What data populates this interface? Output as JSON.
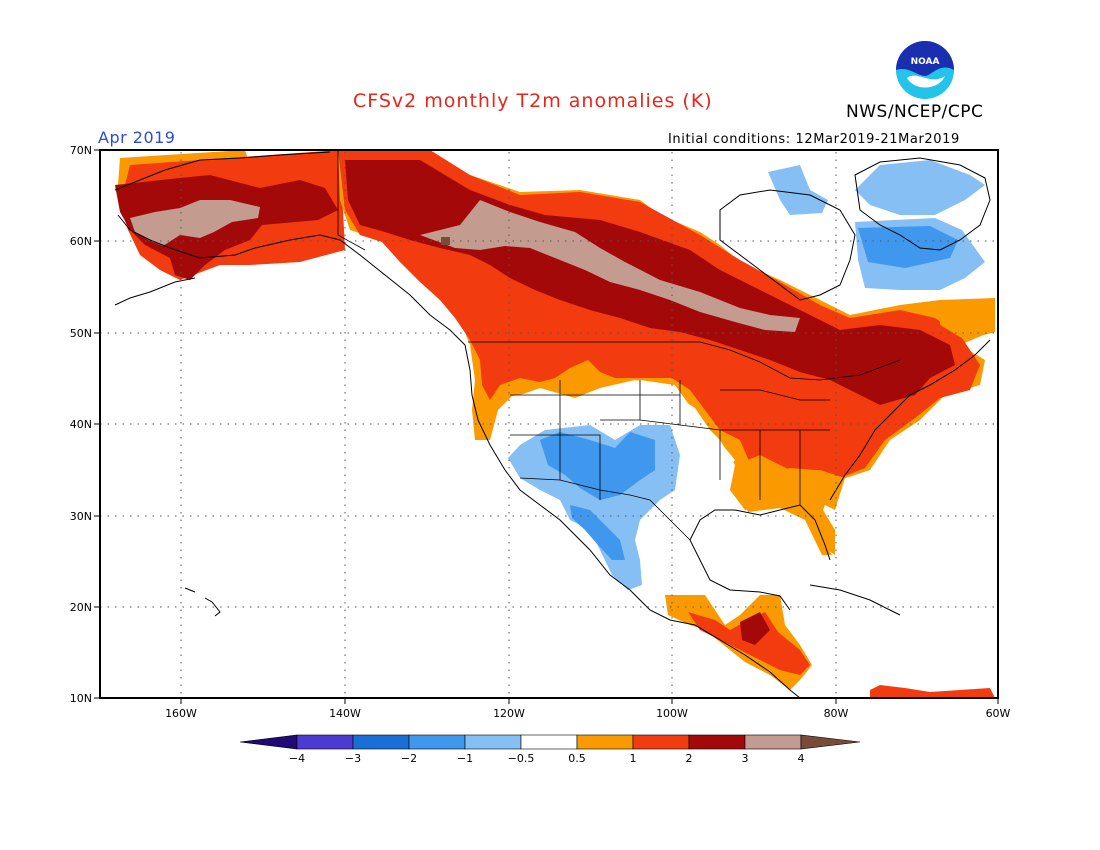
{
  "title": "CFSv2 monthly T2m anomalies (K)",
  "agency": "NWS/NCEP/CPC",
  "logo_text": "NOAA",
  "valid_month": "Apr 2019",
  "initial_conditions": "Initial conditions: 12Mar2019-21Mar2019",
  "map": {
    "lon_range": [
      -170,
      -60
    ],
    "lat_range": [
      10,
      70
    ],
    "lat_labels": [
      "10N",
      "20N",
      "30N",
      "40N",
      "50N",
      "60N",
      "70N"
    ],
    "lon_labels": [
      "160W",
      "140W",
      "120W",
      "100W",
      "80W",
      "60W"
    ],
    "colors": {
      "below_-4": "#1f0a78",
      "-4_-3": "#4b3bd0",
      "-3_-2": "#1a6fd6",
      "-2_-1": "#3f97ee",
      "-1_-0.5": "#85bff3",
      "-0.5_0.5": "#ffffff",
      "0.5_1": "#fa9a00",
      "1_2": "#f23b0e",
      "2_3": "#a40909",
      "3_4": "#c49b8f",
      "above_4": "#7a4a3a"
    }
  },
  "legend": {
    "labels": [
      "-4",
      "-3",
      "-2",
      "-1",
      "-0.5",
      "0.5",
      "1",
      "2",
      "3",
      "4"
    ],
    "colors": [
      "#1f0a78",
      "#4b3bd0",
      "#1a6fd6",
      "#3f97ee",
      "#85bff3",
      "#ffffff",
      "#fa9a00",
      "#f23b0e",
      "#a40909",
      "#c49b8f",
      "#7a4a3a"
    ]
  }
}
